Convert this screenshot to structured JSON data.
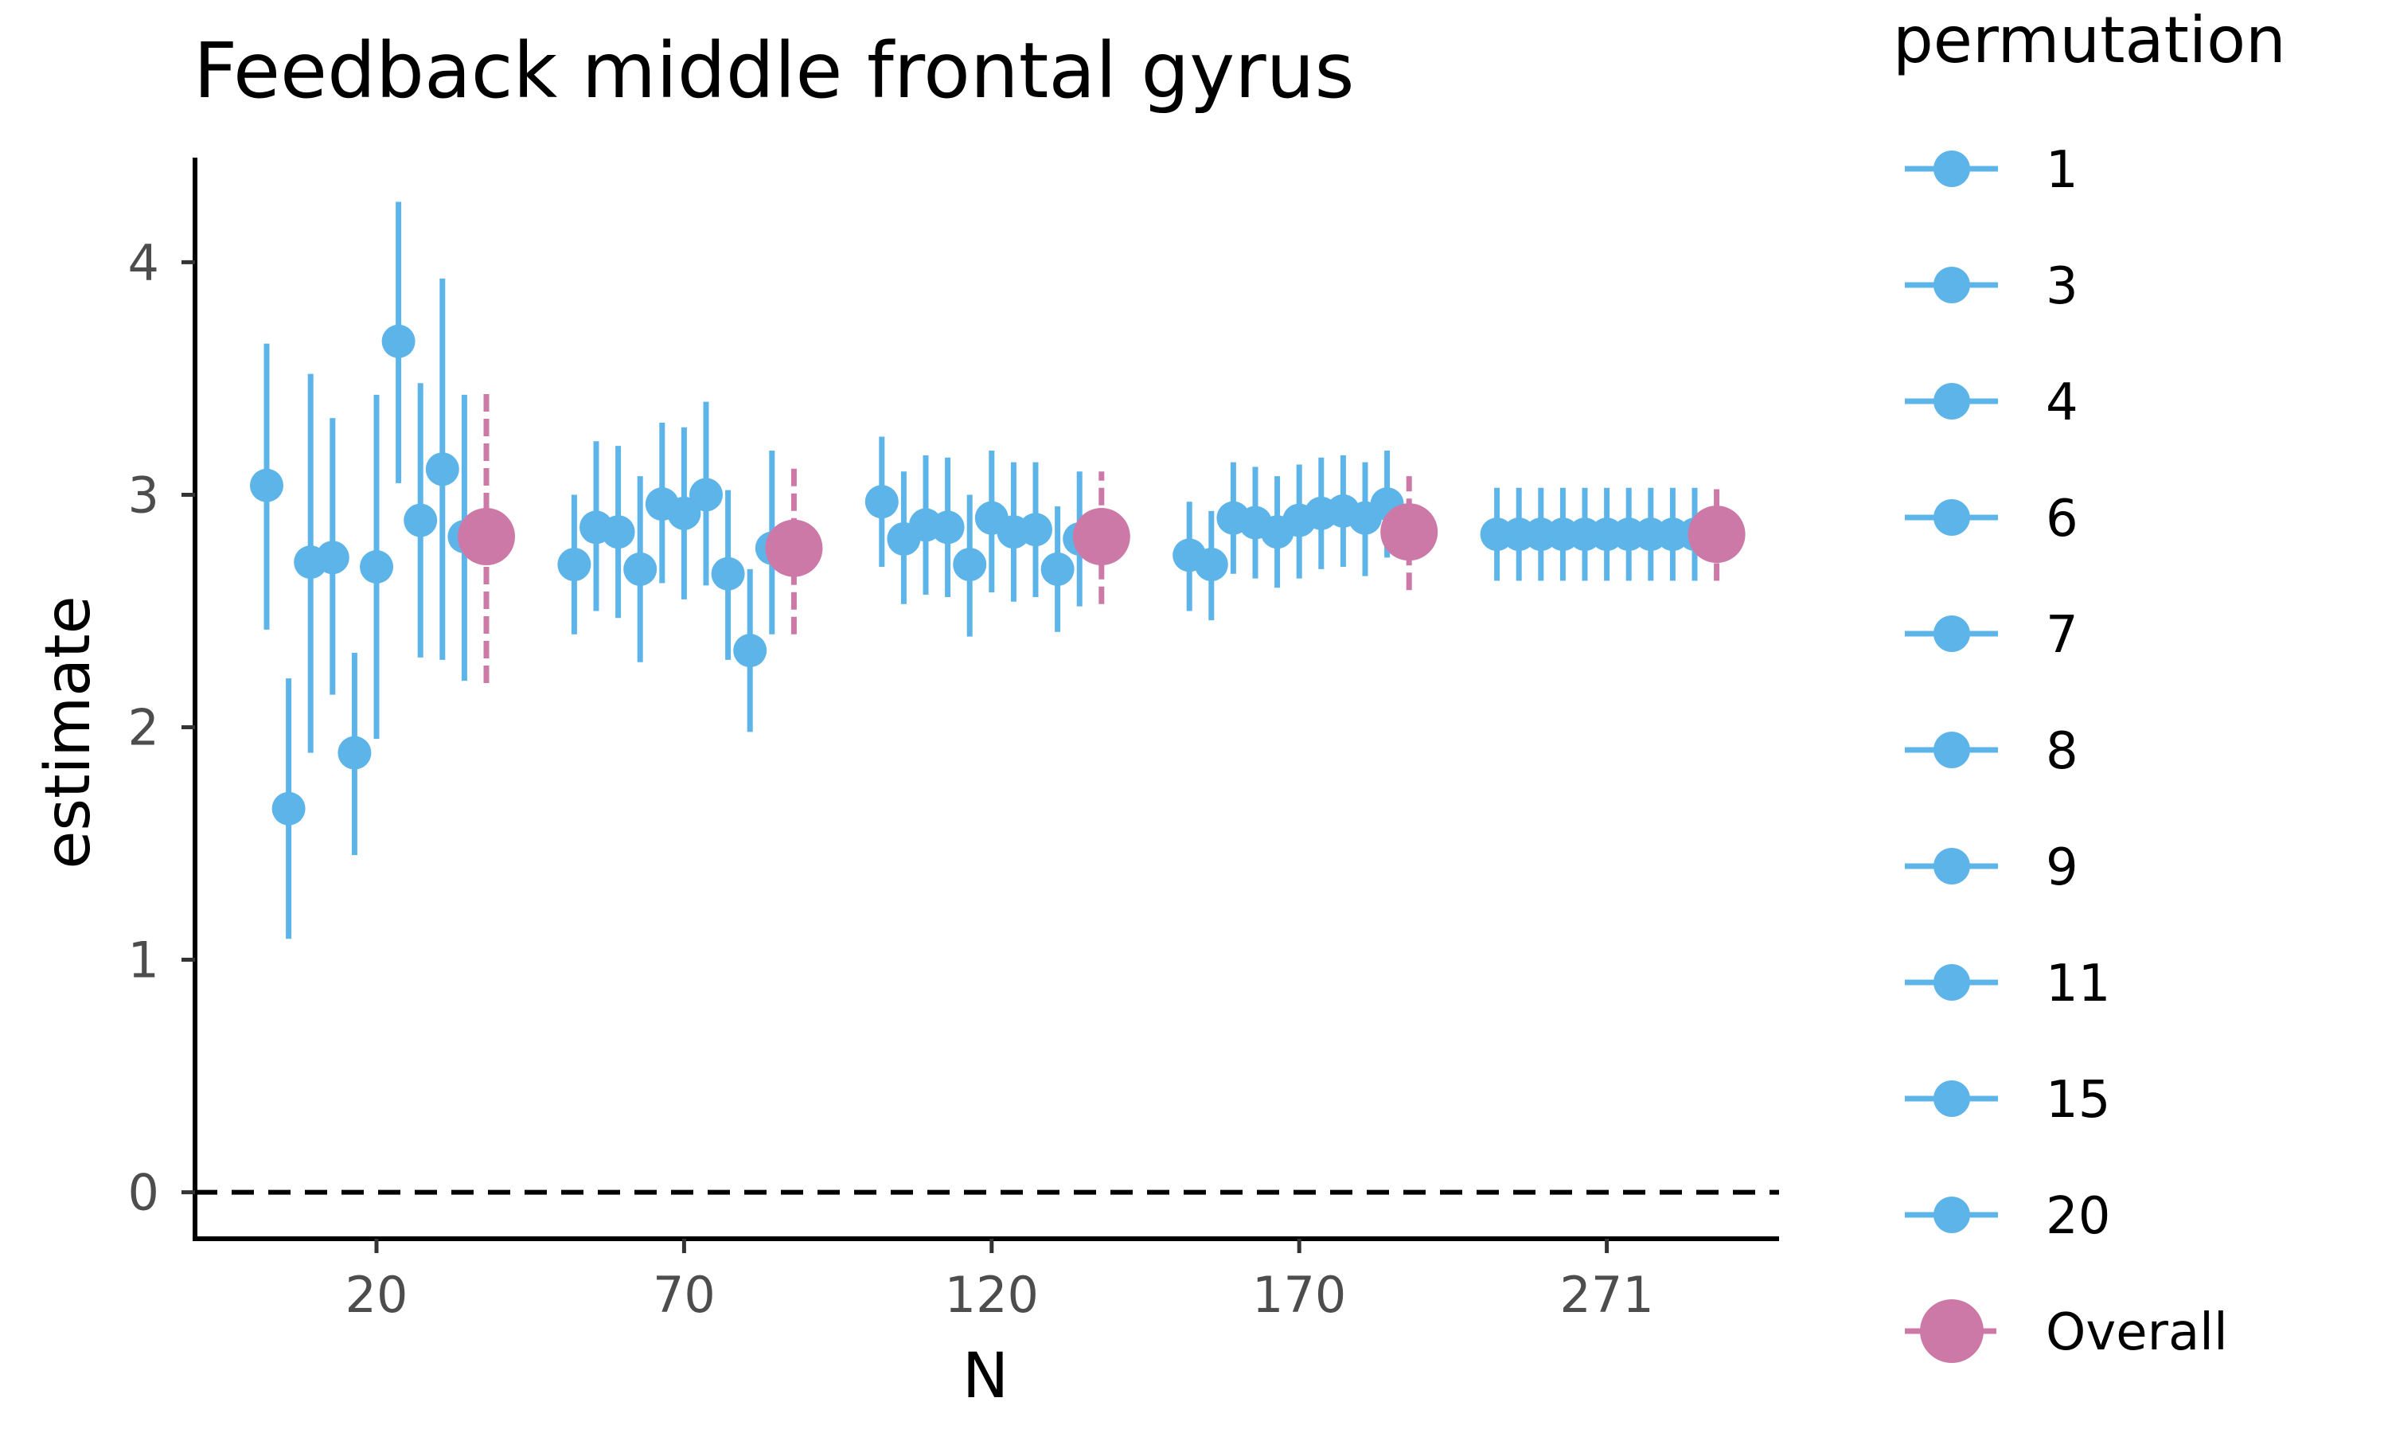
{
  "chart_data": {
    "type": "scatter",
    "title": "Feedback middle frontal gyrus",
    "xlabel": "N",
    "ylabel": "estimate",
    "ylim": [
      -0.2,
      4.45
    ],
    "yticks": [
      0,
      1,
      2,
      3,
      4
    ],
    "xticks": [
      {
        "label": "20",
        "index": 5
      },
      {
        "label": "70",
        "index": 19
      },
      {
        "label": "120",
        "index": 33
      },
      {
        "label": "170",
        "index": 47
      },
      {
        "label": "271",
        "index": 61
      }
    ],
    "reference_line": {
      "y": 0,
      "style": "dashed",
      "color": "#000000"
    },
    "grid": false,
    "legend": {
      "title": "permutation",
      "position": "right",
      "items": [
        "1",
        "3",
        "4",
        "6",
        "7",
        "8",
        "9",
        "11",
        "15",
        "20",
        "Overall"
      ]
    },
    "colors": {
      "permutation": "#5DB4E8",
      "overall": "#CC79A7"
    },
    "groups": [
      {
        "points": [
          {
            "y": 3.04,
            "lo": 2.42,
            "hi": 3.65
          },
          {
            "y": 1.65,
            "lo": 1.09,
            "hi": 2.21
          },
          {
            "y": 2.71,
            "lo": 1.89,
            "hi": 3.52
          },
          {
            "y": 2.73,
            "lo": 2.14,
            "hi": 3.33
          },
          {
            "y": 1.89,
            "lo": 1.45,
            "hi": 2.32
          },
          {
            "y": 2.69,
            "lo": 1.95,
            "hi": 3.43
          },
          {
            "y": 3.66,
            "lo": 3.05,
            "hi": 4.26
          },
          {
            "y": 2.89,
            "lo": 2.3,
            "hi": 3.48
          },
          {
            "y": 3.11,
            "lo": 2.29,
            "hi": 3.93
          },
          {
            "y": 2.82,
            "lo": 2.2,
            "hi": 3.43
          }
        ],
        "overall": {
          "y": 2.82,
          "lo": 2.19,
          "hi": 3.45
        }
      },
      {
        "points": [
          {
            "y": 2.7,
            "lo": 2.4,
            "hi": 3.0
          },
          {
            "y": 2.86,
            "lo": 2.5,
            "hi": 3.23
          },
          {
            "y": 2.84,
            "lo": 2.47,
            "hi": 3.21
          },
          {
            "y": 2.68,
            "lo": 2.28,
            "hi": 3.08
          },
          {
            "y": 2.96,
            "lo": 2.62,
            "hi": 3.31
          },
          {
            "y": 2.92,
            "lo": 2.55,
            "hi": 3.29
          },
          {
            "y": 3.0,
            "lo": 2.61,
            "hi": 3.4
          },
          {
            "y": 2.66,
            "lo": 2.29,
            "hi": 3.02
          },
          {
            "y": 2.33,
            "lo": 1.98,
            "hi": 2.68
          },
          {
            "y": 2.77,
            "lo": 2.4,
            "hi": 3.19
          }
        ],
        "overall": {
          "y": 2.77,
          "lo": 2.4,
          "hi": 3.14
        }
      },
      {
        "points": [
          {
            "y": 2.97,
            "lo": 2.69,
            "hi": 3.25
          },
          {
            "y": 2.81,
            "lo": 2.53,
            "hi": 3.1
          },
          {
            "y": 2.87,
            "lo": 2.57,
            "hi": 3.17
          },
          {
            "y": 2.86,
            "lo": 2.56,
            "hi": 3.16
          },
          {
            "y": 2.7,
            "lo": 2.39,
            "hi": 3.0
          },
          {
            "y": 2.9,
            "lo": 2.58,
            "hi": 3.19
          },
          {
            "y": 2.84,
            "lo": 2.54,
            "hi": 3.14
          },
          {
            "y": 2.85,
            "lo": 2.56,
            "hi": 3.14
          },
          {
            "y": 2.68,
            "lo": 2.41,
            "hi": 2.95
          },
          {
            "y": 2.81,
            "lo": 2.52,
            "hi": 3.1
          }
        ],
        "overall": {
          "y": 2.82,
          "lo": 2.53,
          "hi": 3.1
        }
      },
      {
        "points": [
          {
            "y": 2.74,
            "lo": 2.5,
            "hi": 2.97
          },
          {
            "y": 2.7,
            "lo": 2.46,
            "hi": 2.93
          },
          {
            "y": 2.9,
            "lo": 2.66,
            "hi": 3.14
          },
          {
            "y": 2.88,
            "lo": 2.64,
            "hi": 3.12
          },
          {
            "y": 2.84,
            "lo": 2.6,
            "hi": 3.08
          },
          {
            "y": 2.89,
            "lo": 2.64,
            "hi": 3.13
          },
          {
            "y": 2.92,
            "lo": 2.68,
            "hi": 3.16
          },
          {
            "y": 2.93,
            "lo": 2.69,
            "hi": 3.17
          },
          {
            "y": 2.9,
            "lo": 2.65,
            "hi": 3.14
          },
          {
            "y": 2.96,
            "lo": 2.73,
            "hi": 3.19
          }
        ],
        "overall": {
          "y": 2.84,
          "lo": 2.59,
          "hi": 3.08
        }
      },
      {
        "points": [
          {
            "y": 2.83,
            "lo": 2.63,
            "hi": 3.03
          },
          {
            "y": 2.83,
            "lo": 2.63,
            "hi": 3.03
          },
          {
            "y": 2.83,
            "lo": 2.63,
            "hi": 3.03
          },
          {
            "y": 2.83,
            "lo": 2.63,
            "hi": 3.03
          },
          {
            "y": 2.83,
            "lo": 2.63,
            "hi": 3.03
          },
          {
            "y": 2.83,
            "lo": 2.63,
            "hi": 3.03
          },
          {
            "y": 2.83,
            "lo": 2.63,
            "hi": 3.03
          },
          {
            "y": 2.83,
            "lo": 2.63,
            "hi": 3.03
          },
          {
            "y": 2.83,
            "lo": 2.63,
            "hi": 3.03
          },
          {
            "y": 2.83,
            "lo": 2.63,
            "hi": 3.03
          }
        ],
        "overall": {
          "y": 2.83,
          "lo": 2.63,
          "hi": 3.03
        }
      }
    ]
  }
}
